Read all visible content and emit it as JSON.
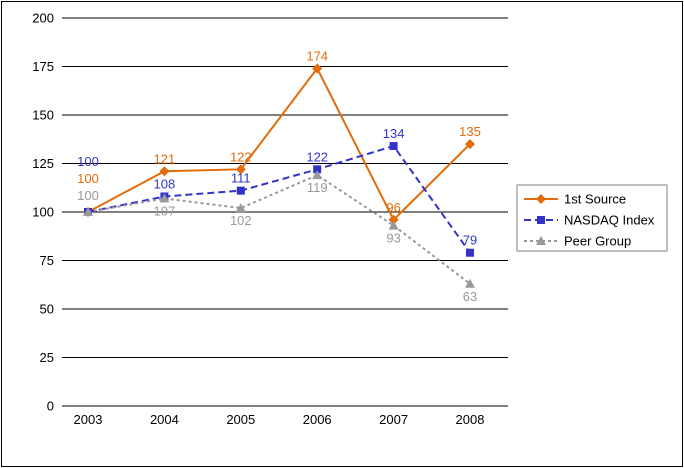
{
  "chart_data": {
    "type": "line",
    "title": "",
    "categories": [
      "2003",
      "2004",
      "2005",
      "2006",
      "2007",
      "2008"
    ],
    "series": [
      {
        "name": "1st Source",
        "values": [
          100,
          121,
          122,
          174,
          96,
          135
        ],
        "color": "#E36C0A",
        "marker": "diamond",
        "line_style": "solid"
      },
      {
        "name": "NASDAQ Index",
        "values": [
          100,
          108,
          111,
          122,
          134,
          79
        ],
        "color": "#3333CC",
        "marker": "square",
        "line_style": "dashed"
      },
      {
        "name": "Peer Group",
        "values": [
          100,
          107,
          102,
          119,
          93,
          63
        ],
        "color": "#999999",
        "marker": "triangle",
        "line_style": "dotted"
      }
    ],
    "xlabel": "",
    "ylabel": "",
    "ylim": [
      0,
      200
    ],
    "ytick_step": 25,
    "grid": true,
    "legend_position": "right",
    "data_labels_visible": true,
    "colors": {
      "gridline": "#000000",
      "axis_text": "#000000",
      "border": "#000000",
      "legend_border": "#808080",
      "background": "#ffffff"
    }
  }
}
